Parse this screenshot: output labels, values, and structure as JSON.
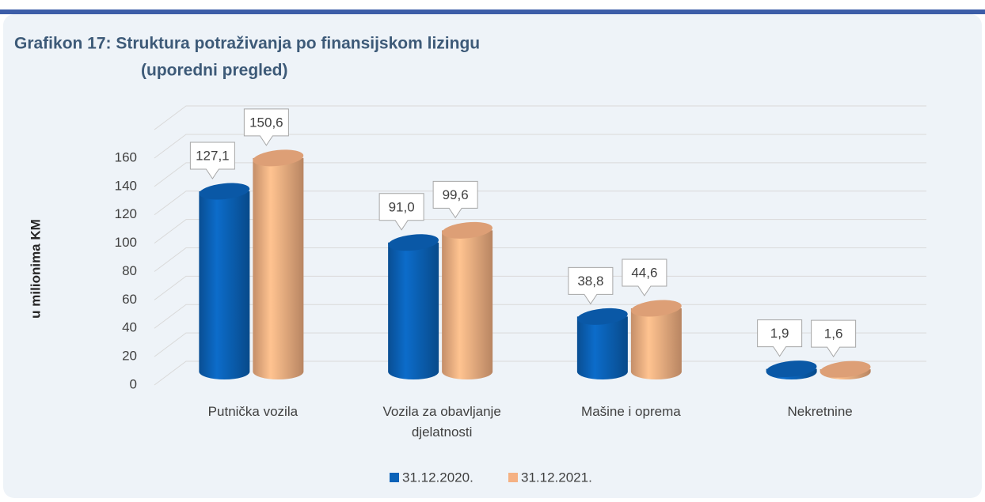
{
  "chart_data": {
    "type": "bar",
    "title": "Grafikon 17: Struktura potraživanja po finansijskom lizingu",
    "subtitle": "(uporedni pregled)",
    "y_label": "u milionima KM",
    "categories": [
      "Putnička vozila",
      "Vozila za obavljanje djelatnosti",
      "Mašine i oprema",
      "Nekretnine"
    ],
    "series": [
      {
        "name": "31.12.2020.",
        "color": "#0b62b8",
        "values": [
          127.1,
          91.0,
          38.8,
          1.9
        ],
        "value_labels": [
          "127,1",
          "91,0",
          "38,8",
          "1,9"
        ]
      },
      {
        "name": "31.12.2021.",
        "color": "#f5b183",
        "values": [
          150.6,
          99.6,
          44.6,
          1.6
        ],
        "value_labels": [
          "150,6",
          "99,6",
          "44,6",
          "1,6"
        ]
      }
    ],
    "ylim": [
      0,
      160
    ],
    "yticks": [
      0,
      20,
      40,
      60,
      80,
      100,
      120,
      140,
      160
    ],
    "grid": true,
    "legend": "bottom"
  }
}
